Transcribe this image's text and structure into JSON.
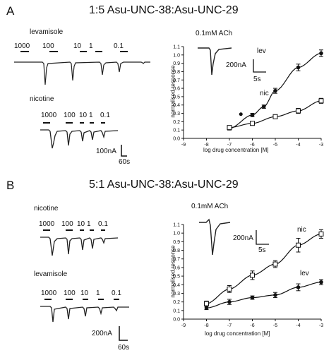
{
  "panelA": {
    "letter": "A",
    "title": "1:5 Asu-UNC-38:Asu-UNC-29",
    "ach_label": "0.1mM ACh",
    "ach_scale_y": "200nA",
    "ach_scale_x": "5s",
    "trace1_label": "levamisole",
    "trace1_concs": [
      "1000",
      "100",
      "10",
      "1",
      "0.1"
    ],
    "trace2_label": "nicotine",
    "trace2_concs": [
      "1000",
      "100",
      "10",
      "1",
      "0.1"
    ],
    "trace_scale_y": "100nA",
    "trace_scale_x": "60s"
  },
  "panelB": {
    "letter": "B",
    "title": "5:1 Asu-UNC-38:Asu-UNC-29",
    "ach_label": "0.1mM ACh",
    "ach_scale_y": "200nA",
    "ach_scale_x": "5s",
    "trace1_label": "nicotine",
    "trace1_concs": [
      "1000",
      "100",
      "10",
      "1",
      "0.1"
    ],
    "trace2_label": "levamisole",
    "trace2_concs": [
      "1000",
      "100",
      "10",
      "1",
      "0.1"
    ],
    "trace_scale_y": "200nA",
    "trace_scale_x": "60s"
  },
  "chart_data": [
    {
      "type": "line",
      "panel": "A",
      "xlabel": "log drug concentration [M]",
      "ylabel": "normalised response",
      "xlim": [
        -9,
        -3
      ],
      "ylim": [
        0,
        1.1
      ],
      "xticks": [
        -9,
        -8,
        -7,
        -6,
        -5,
        -4,
        -3
      ],
      "yticks": [
        0.0,
        0.1,
        0.2,
        0.3,
        0.4,
        0.5,
        0.6,
        0.7,
        0.8,
        0.9,
        1.0,
        1.1
      ],
      "series": [
        {
          "name": "lev",
          "marker": "filled-circle",
          "x": [
            -7,
            -6,
            -5.5,
            -5,
            -4,
            -3
          ],
          "y": [
            0.12,
            0.28,
            0.38,
            0.57,
            0.85,
            1.02
          ],
          "err": [
            0.02,
            0.02,
            0.02,
            0.03,
            0.04,
            0.04
          ]
        },
        {
          "name": "nic",
          "marker": "open-square",
          "x": [
            -7,
            -6,
            -5,
            -4,
            -3
          ],
          "y": [
            0.13,
            0.18,
            0.26,
            0.33,
            0.45
          ],
          "err": [
            0.02,
            0.02,
            0.02,
            0.03,
            0.03
          ]
        }
      ],
      "extra_points": [
        {
          "x": -6.5,
          "y": 0.29
        }
      ]
    },
    {
      "type": "line",
      "panel": "B",
      "xlabel": "log drug concentration [M]",
      "ylabel": "normalised response",
      "xlim": [
        -9,
        -3
      ],
      "ylim": [
        0,
        1.1
      ],
      "xticks": [
        -9,
        -8,
        -7,
        -6,
        -5,
        -4,
        -3
      ],
      "yticks": [
        0.0,
        0.1,
        0.2,
        0.3,
        0.4,
        0.5,
        0.6,
        0.7,
        0.8,
        0.9,
        1.0,
        1.1
      ],
      "series": [
        {
          "name": "nic",
          "marker": "open-square",
          "x": [
            -8,
            -7,
            -6,
            -5,
            -4,
            -3
          ],
          "y": [
            0.18,
            0.35,
            0.51,
            0.64,
            0.86,
            0.99
          ],
          "err": [
            0.03,
            0.04,
            0.05,
            0.04,
            0.08,
            0.05
          ]
        },
        {
          "name": "lev",
          "marker": "filled-circle",
          "x": [
            -8,
            -7,
            -6,
            -5,
            -4,
            -3
          ],
          "y": [
            0.13,
            0.2,
            0.25,
            0.28,
            0.37,
            0.43
          ],
          "err": [
            0.02,
            0.03,
            0.02,
            0.03,
            0.04,
            0.03
          ]
        }
      ]
    }
  ]
}
